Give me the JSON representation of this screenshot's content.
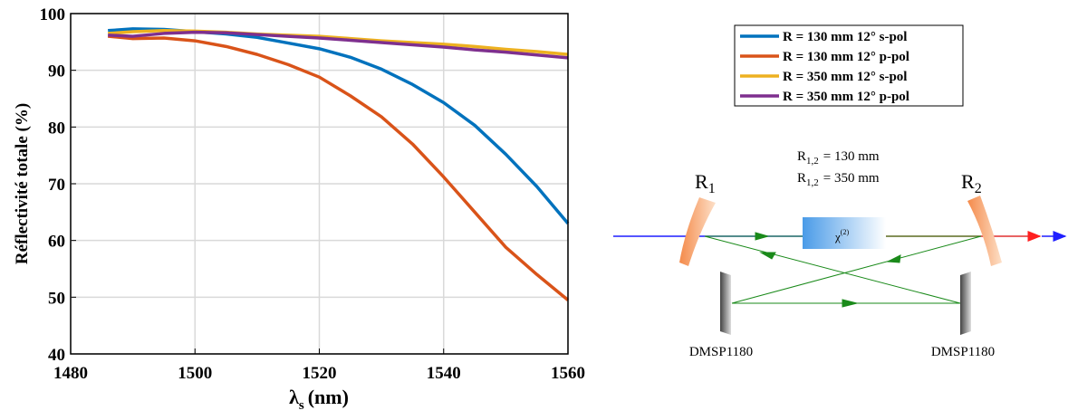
{
  "chart_data": {
    "type": "line",
    "y_label": "Réflectivité totale (%)",
    "x_label": {
      "symbol": "λ",
      "subscript": "s",
      "unit": "(nm)"
    },
    "x": [
      1486,
      1490,
      1495,
      1500,
      1505,
      1510,
      1515,
      1520,
      1525,
      1530,
      1535,
      1540,
      1545,
      1550,
      1555,
      1560
    ],
    "series": [
      {
        "name": "R = 130 mm 12° s-pol",
        "color": "#0072bd",
        "values": [
          97,
          97.3,
          97.2,
          96.8,
          96.4,
          95.8,
          94.8,
          93.8,
          92.3,
          90.2,
          87.5,
          84.3,
          80.3,
          75.2,
          69.5,
          63
        ]
      },
      {
        "name": "R = 130 mm 12° p-pol",
        "color": "#d95319",
        "values": [
          96,
          95.6,
          95.7,
          95.2,
          94.2,
          92.8,
          91,
          88.8,
          85.5,
          81.8,
          77,
          71.2,
          65,
          58.8,
          54,
          49.5
        ]
      },
      {
        "name": "R = 350 mm 12° s-pol",
        "color": "#edb120",
        "values": [
          96.5,
          96.8,
          97,
          96.9,
          96.7,
          96.4,
          96.2,
          96,
          95.6,
          95.2,
          94.9,
          94.6,
          94.2,
          93.7,
          93.3,
          92.8
        ]
      },
      {
        "name": "R = 350 mm 12° p-pol",
        "color": "#7e2f8e",
        "values": [
          96.2,
          96,
          96.5,
          96.7,
          96.6,
          96.3,
          96,
          95.7,
          95.3,
          94.9,
          94.5,
          94.1,
          93.6,
          93.2,
          92.7,
          92.2
        ]
      }
    ],
    "xlim": [
      1480,
      1560
    ],
    "xticks": [
      1480,
      1500,
      1520,
      1540,
      1560
    ],
    "ylim": [
      40,
      100
    ],
    "yticks": [
      40,
      50,
      60,
      70,
      80,
      90,
      100
    ],
    "grid": true,
    "legend": "outside-right"
  },
  "diagram": {
    "radius_labels": [
      {
        "symbol": "R",
        "subscript": "1,2",
        "text": "= 130 mm"
      },
      {
        "symbol": "R",
        "subscript": "1,2",
        "text": "= 350 mm"
      }
    ],
    "mirror_1": {
      "symbol": "R",
      "subscript": "1"
    },
    "mirror_2": {
      "symbol": "R",
      "subscript": "2"
    },
    "crystal": {
      "symbol": "χ",
      "superscript": "(2)"
    },
    "flat_mirrors": [
      "DMSP1180",
      "DMSP1180"
    ]
  }
}
